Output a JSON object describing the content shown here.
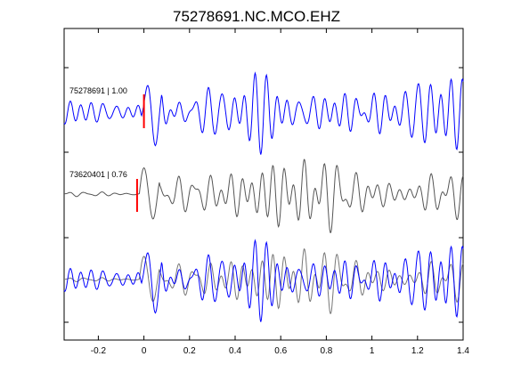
{
  "chart_data": {
    "type": "line",
    "title": "75278691.NC.MCO.EHZ",
    "xlabel": "",
    "ylabel": "",
    "xlim": [
      -0.35,
      1.4
    ],
    "x_ticks": [
      -0.2,
      0,
      0.2,
      0.4,
      0.6,
      0.8,
      1,
      1.2,
      1.4
    ],
    "x_tick_labels": [
      "-0.2",
      "0",
      "0.2",
      "0.4",
      "0.6",
      "0.8",
      "1",
      "1.2",
      "1.4"
    ],
    "grid": false,
    "legend": "none",
    "traces": [
      {
        "label": "75278691 | 1.00",
        "color": "#0000ff",
        "pick_time": 0.0,
        "pick_color": "#ff0000"
      },
      {
        "label": "73620401 | 0.76",
        "color": "#555555",
        "pick_time": -0.03,
        "pick_color": "#ff0000"
      }
    ],
    "overlay": {
      "colors": [
        "#0000ff",
        "#777777"
      ]
    }
  }
}
